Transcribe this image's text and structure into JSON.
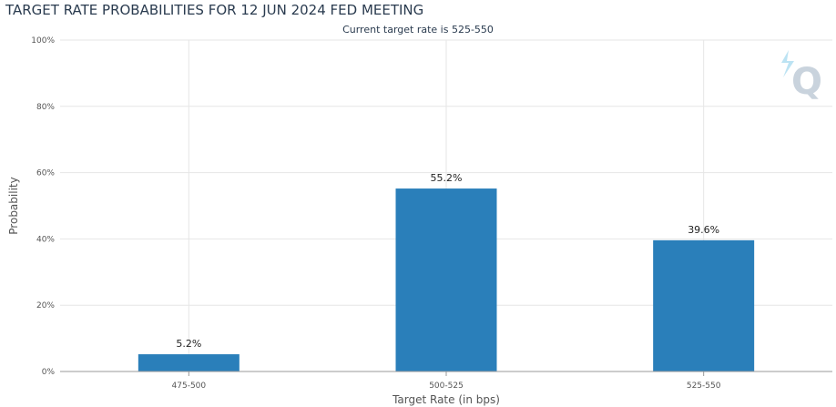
{
  "chart_data": {
    "type": "bar",
    "title": "TARGET RATE PROBABILITIES FOR 12 JUN 2024 FED MEETING",
    "subtitle": "Current target rate is 525-550",
    "xlabel": "Target Rate (in bps)",
    "ylabel": "Probability",
    "categories": [
      "475-500",
      "500-525",
      "525-550"
    ],
    "values": [
      5.2,
      55.2,
      39.6
    ],
    "data_labels": [
      "5.2%",
      "55.2%",
      "39.6%"
    ],
    "ylim": [
      0,
      100
    ],
    "yticks": [
      0,
      20,
      40,
      60,
      80,
      100
    ],
    "ytick_labels": [
      "0%",
      "20%",
      "40%",
      "60%",
      "80%",
      "100%"
    ],
    "grid": true,
    "bar_color": "#2a7fba"
  },
  "watermark": {
    "letter": "Q"
  }
}
